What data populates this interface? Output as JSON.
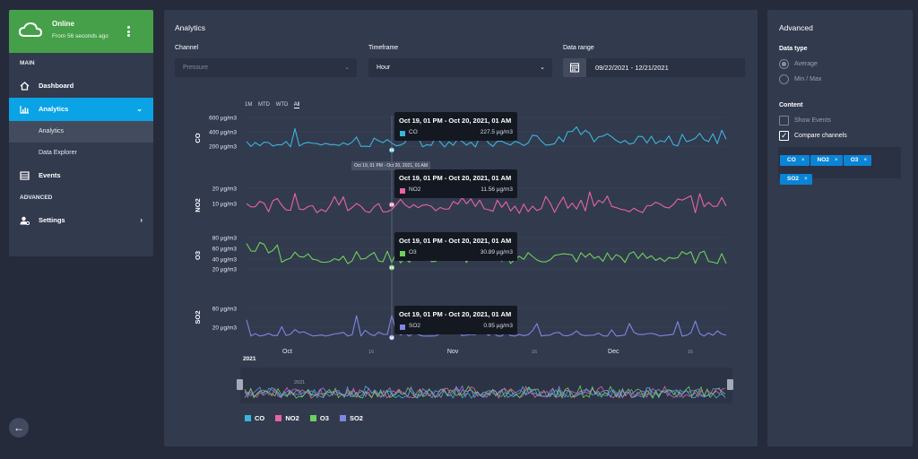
{
  "sidebar": {
    "status": {
      "title": "Online",
      "subtitle": "From 56 seconds ago"
    },
    "section_main": "MAIN",
    "items": [
      {
        "label": "Dashboard",
        "icon": "home-icon"
      },
      {
        "label": "Analytics",
        "icon": "bar-chart-icon",
        "active": true
      },
      {
        "label": "Events",
        "icon": "list-icon"
      },
      {
        "label": "Settings",
        "icon": "user-settings-icon"
      }
    ],
    "sub_items": [
      {
        "label": "Analytics",
        "active": true
      },
      {
        "label": "Data Explorer"
      }
    ],
    "section_advanced": "ADVANCED"
  },
  "analytics": {
    "title": "Analytics",
    "channel": {
      "label": "Channel",
      "placeholder": "Pressure"
    },
    "timeframe": {
      "label": "Timeframe",
      "value": "Hour"
    },
    "date_range": {
      "label": "Data range",
      "value": "09/22/2021 - 12/21/2021"
    },
    "range_buttons": [
      "1M",
      "MTD",
      "WTD",
      "All"
    ],
    "selected_range": "All",
    "hover_date_label": "Oct 19, 01 PM - Oct 20, 2021, 01 AM",
    "tooltips": [
      {
        "title": "Oct 19, 01 PM - Oct 20, 2021, 01 AM",
        "series": "CO",
        "value": "227.5 µg/m3",
        "color": "#3bb6da"
      },
      {
        "title": "Oct 19, 01 PM - Oct 20, 2021, 01 AM",
        "series": "NO2",
        "value": "11.56 µg/m3",
        "color": "#e764a5"
      },
      {
        "title": "Oct 19, 01 PM - Oct 20, 2021, 01 AM",
        "series": "O3",
        "value": "30.89 µg/m3",
        "color": "#6ed15a"
      },
      {
        "title": "Oct 19, 01 PM - Oct 20, 2021, 01 AM",
        "series": "SO2",
        "value": "0.95 µg/m3",
        "color": "#7f86e0"
      }
    ],
    "navigator_year": "2021",
    "legend": [
      {
        "name": "CO",
        "color": "#3bb6da"
      },
      {
        "name": "NO2",
        "color": "#e764a5"
      },
      {
        "name": "O3",
        "color": "#6ed15a"
      },
      {
        "name": "SO2",
        "color": "#7f86e0"
      }
    ]
  },
  "chart_data": {
    "type": "line",
    "x_ticks": [
      "Oct",
      "16",
      "Nov",
      "16",
      "Dec",
      "16"
    ],
    "x_range": [
      "2021-09-22",
      "2021-12-21"
    ],
    "panels": [
      {
        "series": "CO",
        "color": "#3bb6da",
        "y_ticks": [
          "600 µg/m3",
          "400 µg/m3",
          "200 µg/m3"
        ],
        "ylim": [
          100,
          650
        ],
        "hover_value": 227.5
      },
      {
        "series": "NO2",
        "color": "#e764a5",
        "y_ticks": [
          "20 µg/m3",
          "10 µg/m3"
        ],
        "ylim": [
          0,
          28
        ],
        "hover_value": 11.56
      },
      {
        "series": "O3",
        "color": "#6ed15a",
        "y_ticks": [
          "80 µg/m3",
          "60 µg/m3",
          "40 µg/m3",
          "20 µg/m3"
        ],
        "ylim": [
          10,
          90
        ],
        "hover_value": 30.89
      },
      {
        "series": "SO2",
        "color": "#7f86e0",
        "y_ticks": [
          "60 µg/m3",
          "20 µg/m3"
        ],
        "ylim": [
          0,
          80
        ],
        "hover_value": 0.95
      }
    ],
    "grid": true
  },
  "advanced": {
    "title": "Advanced",
    "data_type_label": "Data type",
    "data_type_options": [
      "Average",
      "Min / Max"
    ],
    "selected_data_type": "Average",
    "content_label": "Content",
    "show_events": {
      "label": "Show Events",
      "checked": false
    },
    "compare_channels": {
      "label": "Compare channels",
      "checked": true
    },
    "chips": [
      "CO",
      "NO2",
      "O3",
      "SO2"
    ]
  }
}
